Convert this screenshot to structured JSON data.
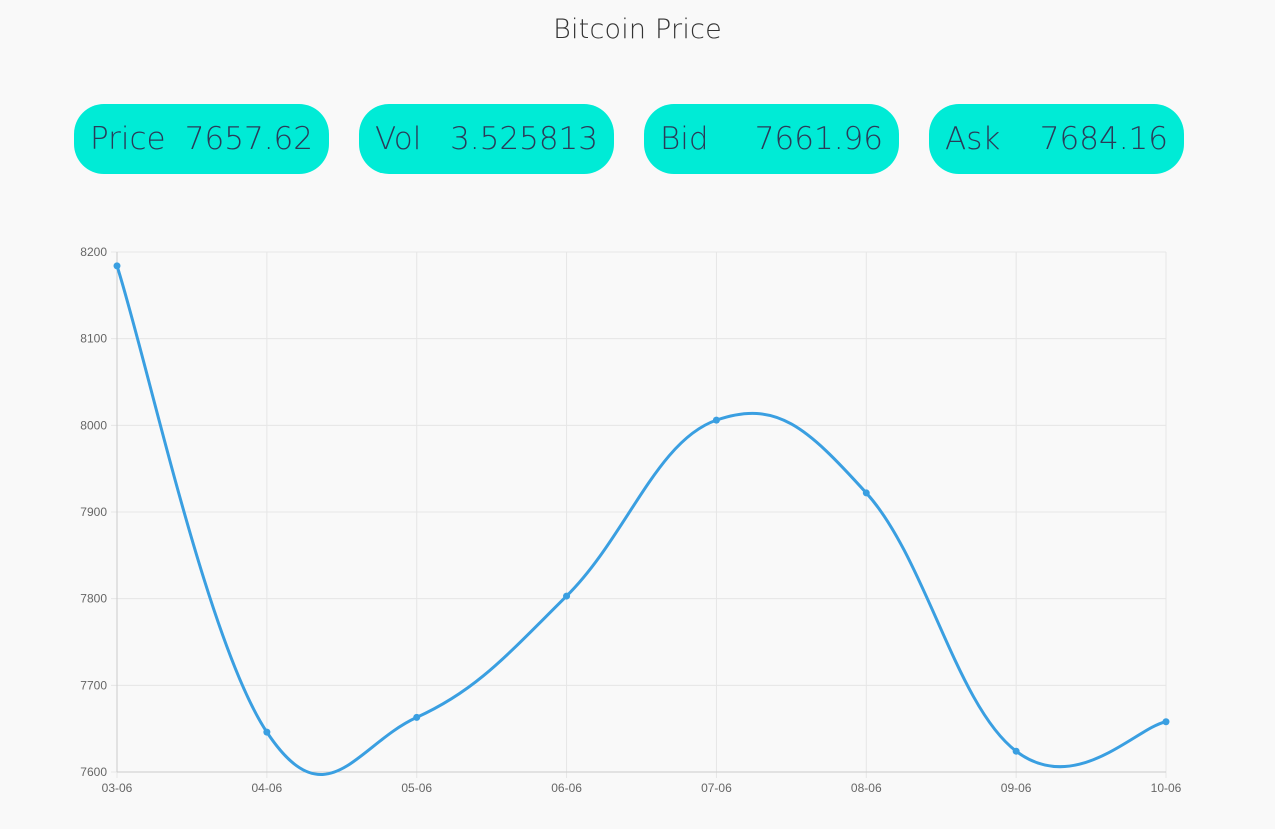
{
  "page": {
    "title": "Bitcoin Price"
  },
  "stats": [
    {
      "label": "Price",
      "value": "7657.62"
    },
    {
      "label": "Vol",
      "value": "3.525813"
    },
    {
      "label": "Bid",
      "value": "7661.96"
    },
    {
      "label": "Ask",
      "value": "7684.16"
    }
  ],
  "colors": {
    "card_bg": "#00ebd6",
    "card_text": "#2a3b59",
    "line": "#3a9fe1",
    "grid": "#e6e6e6"
  },
  "chart_data": {
    "type": "line",
    "categories": [
      "03-06",
      "04-06",
      "05-06",
      "06-06",
      "07-06",
      "08-06",
      "09-06",
      "10-06"
    ],
    "values": [
      8184,
      7646,
      7663,
      7803,
      8006,
      7922,
      7624,
      7658
    ],
    "yticks": [
      "7600",
      "7700",
      "7800",
      "7900",
      "8000",
      "8100",
      "8200"
    ],
    "ylim": [
      7600,
      8200
    ],
    "grid": true,
    "legend": "none"
  }
}
